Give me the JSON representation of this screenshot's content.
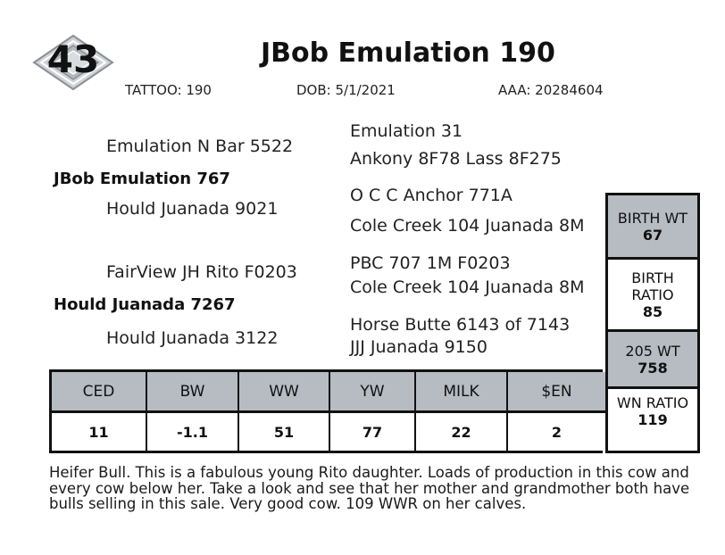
{
  "lot": {
    "number": "43"
  },
  "title": "JBob Emulation 190",
  "meta": {
    "tattoo": "TATTOO:  190",
    "dob": "DOB: 5/1/2021",
    "aaa": "AAA:  20284604"
  },
  "pedigree": {
    "sire": "JBob Emulation 767",
    "sire_sire": "Emulation N Bar 5522",
    "sire_dam": "Hould Juanada 9021",
    "dam": "Hould Juanada 7267",
    "dam_sire": "FairView JH Rito F0203",
    "dam_dam": "Hould Juanada 3122",
    "ggp": [
      "Emulation 31",
      "Ankony 8F78 Lass 8F275",
      "O C C Anchor 771A",
      "Cole Creek 104 Juanada 8M",
      "PBC 707 1M F0203",
      "Cole Creek 104 Juanada 8M",
      "Horse Butte 6143 of 7143",
      "JJJ Juanada 9150"
    ]
  },
  "epd": {
    "headers": [
      "CED",
      "BW",
      "WW",
      "YW",
      "MILK",
      "$EN"
    ],
    "values": [
      "11",
      "-1.1",
      "51",
      "77",
      "22",
      "2"
    ]
  },
  "stats": {
    "birth_wt_label": "BIRTH WT",
    "birth_wt_value": "67",
    "birth_ratio_label_1": "BIRTH",
    "birth_ratio_label_2": "RATIO",
    "birth_ratio_value": "85",
    "wt205_label": "205 WT",
    "wt205_value": "758",
    "wn_ratio_label": "WN RATIO",
    "wn_ratio_value": "119"
  },
  "description": "Heifer Bull.  This is a fabulous young Rito daughter. Loads of production in this cow and every cow below her. Take a look and see that her mother and grandmother both have bulls selling in this sale. Very good cow. 109 WWR on her calves.",
  "colors": {
    "header_grey": "#b7bcc2",
    "border": "#111111"
  }
}
